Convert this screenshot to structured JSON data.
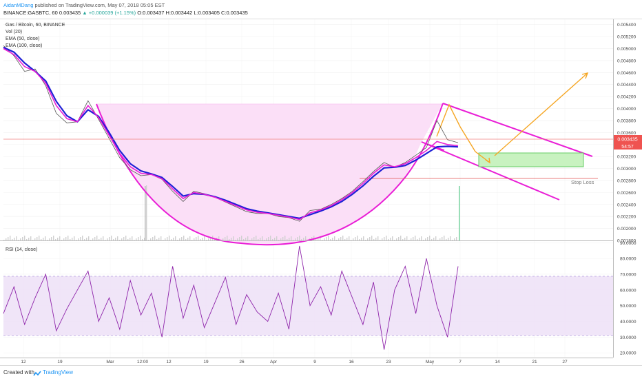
{
  "header": {
    "author": "AidanMDang",
    "published": "published on TradingView.com, May 07, 2018 05:05 EST",
    "symbol": "BINANCE:GASBTC, 60",
    "price": "0.003435",
    "change": "▲ +0.000039 (+1.15%)",
    "ohlc": "O:0.003437 H:0.003442 L:0.003405 C:0.003435"
  },
  "legend": {
    "title": "Gas / Bitcoin, 60, BINANCE",
    "vol": "Vol (20)",
    "ema50": "EMA (50, close)",
    "ema100": "EMA (100, close)"
  },
  "rsi_label": "RSI (14, close)",
  "price_label": "0.003435",
  "timer_label": "54:57",
  "stop_loss_label": "Stop Loss",
  "footer": {
    "created_with": "Created with",
    "brand": "TradingView"
  },
  "colors": {
    "ema_fast": "#e91ed6",
    "ema_slow": "#1f1fd6",
    "price_line": "#555555",
    "pattern": "#e91ed6",
    "pattern_fill": "#fbdff7",
    "arrow": "#f5a623",
    "target_box": "#c8f2c0",
    "rsi_line": "#8e24aa",
    "rsi_band": "#ede0f7",
    "stop_line": "#e05050"
  },
  "chart_data": {
    "type": "line",
    "price_axis": {
      "ticks": [
        "0.005400",
        "0.005200",
        "0.005000",
        "0.004800",
        "0.004600",
        "0.004400",
        "0.004200",
        "0.004000",
        "0.003800",
        "0.003600",
        "0.003400",
        "0.003200",
        "0.003000",
        "0.002800",
        "0.002600",
        "0.002400",
        "0.002200",
        "0.002000",
        "0.001800"
      ],
      "ylim": [
        0.0018,
        0.0055
      ]
    },
    "rsi_axis": {
      "ticks": [
        "90.0000",
        "80.0000",
        "70.0000",
        "60.0000",
        "50.0000",
        "40.0000",
        "30.0000",
        "20.0000"
      ],
      "ylim": [
        17,
        91
      ],
      "band": [
        30,
        70
      ]
    },
    "x_ticks": [
      "12",
      "19",
      "Mar",
      "12:00",
      "12",
      "19",
      "26",
      "Apr",
      "9",
      "16",
      "23",
      "May",
      "7",
      "14",
      "21",
      "27"
    ],
    "series": [
      {
        "key": "price",
        "x": [
          0,
          2,
          4,
          6,
          8,
          10,
          12,
          14,
          16,
          18,
          20,
          22,
          24,
          26,
          28,
          30,
          32,
          34,
          36,
          38,
          40,
          42,
          44,
          46,
          48,
          50,
          52,
          54,
          56,
          58,
          60,
          62,
          64,
          66,
          68,
          70,
          72,
          74,
          76,
          78,
          80,
          82,
          84,
          86
        ],
        "values": [
          0.00505,
          0.00488,
          0.00462,
          0.00466,
          0.00438,
          0.00392,
          0.00376,
          0.00378,
          0.00413,
          0.00382,
          0.0035,
          0.00318,
          0.00298,
          0.00288,
          0.0029,
          0.00282,
          0.00262,
          0.00245,
          0.00262,
          0.00258,
          0.00252,
          0.00244,
          0.00236,
          0.00228,
          0.00225,
          0.00225,
          0.0022,
          0.00218,
          0.00212,
          0.0023,
          0.00232,
          0.0024,
          0.0025,
          0.00262,
          0.00278,
          0.00295,
          0.0031,
          0.00302,
          0.0031,
          0.00322,
          0.00335,
          0.0038,
          0.00348,
          0.00343
        ]
      },
      {
        "key": "ema_fast",
        "name": "EMA (50, close)",
        "x": [
          0,
          2,
          4,
          6,
          8,
          10,
          12,
          14,
          16,
          18,
          20,
          22,
          24,
          26,
          28,
          30,
          32,
          34,
          36,
          38,
          40,
          42,
          44,
          46,
          48,
          50,
          52,
          54,
          56,
          58,
          60,
          62,
          64,
          66,
          68,
          70,
          72,
          74,
          76,
          78,
          80,
          82,
          84,
          86
        ],
        "values": [
          0.005,
          0.0049,
          0.0047,
          0.00462,
          0.00442,
          0.00405,
          0.00383,
          0.00378,
          0.00405,
          0.00385,
          0.00355,
          0.00325,
          0.00303,
          0.00292,
          0.0029,
          0.00283,
          0.00266,
          0.0025,
          0.0026,
          0.00257,
          0.00252,
          0.00245,
          0.00238,
          0.00231,
          0.00227,
          0.00225,
          0.00222,
          0.00219,
          0.00215,
          0.00226,
          0.00231,
          0.00238,
          0.00248,
          0.0026,
          0.00275,
          0.00292,
          0.00306,
          0.00303,
          0.00308,
          0.00318,
          0.0033,
          0.00345,
          0.0034,
          0.00338
        ]
      },
      {
        "key": "ema_slow",
        "name": "EMA (100, close)",
        "x": [
          0,
          2,
          4,
          6,
          8,
          10,
          12,
          14,
          16,
          18,
          20,
          22,
          24,
          26,
          28,
          30,
          32,
          34,
          36,
          38,
          40,
          42,
          44,
          46,
          48,
          50,
          52,
          54,
          56,
          58,
          60,
          62,
          64,
          66,
          68,
          70,
          72,
          74,
          76,
          78,
          80,
          82,
          84,
          86
        ],
        "values": [
          0.00502,
          0.00494,
          0.00476,
          0.00462,
          0.00446,
          0.00412,
          0.00388,
          0.00378,
          0.00398,
          0.00387,
          0.0036,
          0.0033,
          0.00308,
          0.00296,
          0.00291,
          0.00285,
          0.0027,
          0.00254,
          0.00258,
          0.00257,
          0.00253,
          0.00247,
          0.0024,
          0.00233,
          0.00229,
          0.00226,
          0.00223,
          0.0022,
          0.00217,
          0.00223,
          0.00229,
          0.00236,
          0.00245,
          0.00257,
          0.00271,
          0.00287,
          0.00301,
          0.00302,
          0.00305,
          0.00314,
          0.00325,
          0.00336,
          0.00337,
          0.00336
        ]
      },
      {
        "key": "rsi",
        "name": "RSI (14, close)",
        "x": [
          0,
          2,
          4,
          6,
          8,
          10,
          12,
          14,
          16,
          18,
          20,
          22,
          24,
          26,
          28,
          30,
          32,
          34,
          36,
          38,
          40,
          42,
          44,
          46,
          48,
          50,
          52,
          54,
          56,
          58,
          60,
          62,
          64,
          66,
          68,
          70,
          72,
          74,
          76,
          78,
          80,
          82,
          84,
          86
        ],
        "values": [
          45,
          62,
          38,
          55,
          70,
          34,
          48,
          60,
          72,
          40,
          55,
          35,
          66,
          44,
          58,
          30,
          75,
          42,
          63,
          36,
          52,
          68,
          38,
          57,
          46,
          40,
          58,
          35,
          88,
          50,
          62,
          44,
          72,
          55,
          38,
          65,
          22,
          60,
          75,
          45,
          80,
          50,
          30,
          75
        ]
      }
    ]
  }
}
